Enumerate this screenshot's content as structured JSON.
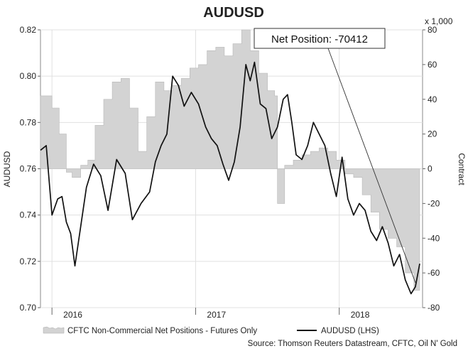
{
  "chart_data": {
    "type": "line",
    "title": "AUDUSD",
    "ylabel_left": "AUDUSD",
    "ylabel_right": "Contract",
    "right_axis_multiplier": "x 1,000",
    "left_ylim": [
      0.7,
      0.82
    ],
    "left_ticks": [
      "0.82",
      "0.80",
      "0.78",
      "0.76",
      "0.74",
      "0.72",
      "0.70"
    ],
    "right_ylim": [
      -80,
      80
    ],
    "right_ticks": [
      "80",
      "60",
      "40",
      "20",
      "0",
      "-20",
      "-40",
      "-60",
      "-80"
    ],
    "x_ticks": [
      "2016",
      "2017",
      "2018"
    ],
    "grid": true,
    "legend_position": "bottom",
    "callout": "Net Position: -70412",
    "source": "Source: Thomson Reuters Datastream, CFTC, Oil N' Gold",
    "series": [
      {
        "name": "CFTC Non-Commercial Net Positions - Futures Only",
        "kind": "area",
        "color": "#d3d3d3",
        "t": [
          2015.92,
          2016.0,
          2016.05,
          2016.1,
          2016.14,
          2016.2,
          2016.25,
          2016.3,
          2016.36,
          2016.42,
          2016.48,
          2016.54,
          2016.6,
          2016.66,
          2016.72,
          2016.78,
          2016.84,
          2016.9,
          2016.96,
          2017.02,
          2017.08,
          2017.14,
          2017.2,
          2017.26,
          2017.32,
          2017.38,
          2017.44,
          2017.5,
          2017.55,
          2017.57,
          2017.62,
          2017.68,
          2017.74,
          2017.8,
          2017.86,
          2017.92,
          2017.98,
          2018.04,
          2018.1,
          2018.16,
          2018.22,
          2018.28,
          2018.34,
          2018.4,
          2018.46,
          2018.52,
          2018.56
        ],
        "values": [
          42,
          35,
          20,
          -2,
          -5,
          2,
          5,
          25,
          40,
          50,
          52,
          35,
          10,
          30,
          50,
          45,
          48,
          52,
          58,
          60,
          68,
          70,
          65,
          72,
          80,
          68,
          55,
          45,
          42,
          -20,
          2,
          5,
          8,
          10,
          12,
          10,
          5,
          -3,
          -5,
          -15,
          -25,
          -35,
          -40,
          -45,
          -60,
          -70,
          -70
        ],
        "unit": "thousand contracts"
      },
      {
        "name": "AUDUSD (LHS)",
        "kind": "line",
        "color": "#111111",
        "t": [
          2015.92,
          2015.96,
          2016.0,
          2016.04,
          2016.07,
          2016.1,
          2016.13,
          2016.16,
          2016.2,
          2016.24,
          2016.29,
          2016.34,
          2016.39,
          2016.45,
          2016.51,
          2016.56,
          2016.62,
          2016.68,
          2016.72,
          2016.76,
          2016.8,
          2016.84,
          2016.88,
          2016.92,
          2016.97,
          2017.02,
          2017.07,
          2017.11,
          2017.15,
          2017.19,
          2017.23,
          2017.27,
          2017.31,
          2017.35,
          2017.38,
          2017.41,
          2017.45,
          2017.49,
          2017.53,
          2017.57,
          2017.61,
          2017.64,
          2017.67,
          2017.7,
          2017.74,
          2017.78,
          2017.82,
          2017.86,
          2017.9,
          2017.94,
          2017.98,
          2018.02,
          2018.06,
          2018.1,
          2018.14,
          2018.18,
          2018.22,
          2018.26,
          2018.3,
          2018.34,
          2018.38,
          2018.42,
          2018.46,
          2018.5,
          2018.53,
          2018.56
        ],
        "values": [
          0.768,
          0.77,
          0.74,
          0.747,
          0.748,
          0.737,
          0.732,
          0.718,
          0.735,
          0.752,
          0.762,
          0.757,
          0.742,
          0.764,
          0.758,
          0.738,
          0.745,
          0.75,
          0.763,
          0.77,
          0.775,
          0.8,
          0.796,
          0.787,
          0.793,
          0.788,
          0.778,
          0.773,
          0.77,
          0.762,
          0.755,
          0.763,
          0.778,
          0.805,
          0.798,
          0.806,
          0.788,
          0.786,
          0.773,
          0.778,
          0.79,
          0.792,
          0.78,
          0.766,
          0.764,
          0.77,
          0.78,
          0.775,
          0.77,
          0.758,
          0.748,
          0.765,
          0.747,
          0.74,
          0.745,
          0.742,
          0.733,
          0.729,
          0.735,
          0.728,
          0.718,
          0.723,
          0.712,
          0.706,
          0.709,
          0.719
        ]
      }
    ]
  },
  "legend": {
    "area_label": "CFTC Non-Commercial Net Positions - Futures Only",
    "line_label": "AUDUSD (LHS)"
  }
}
